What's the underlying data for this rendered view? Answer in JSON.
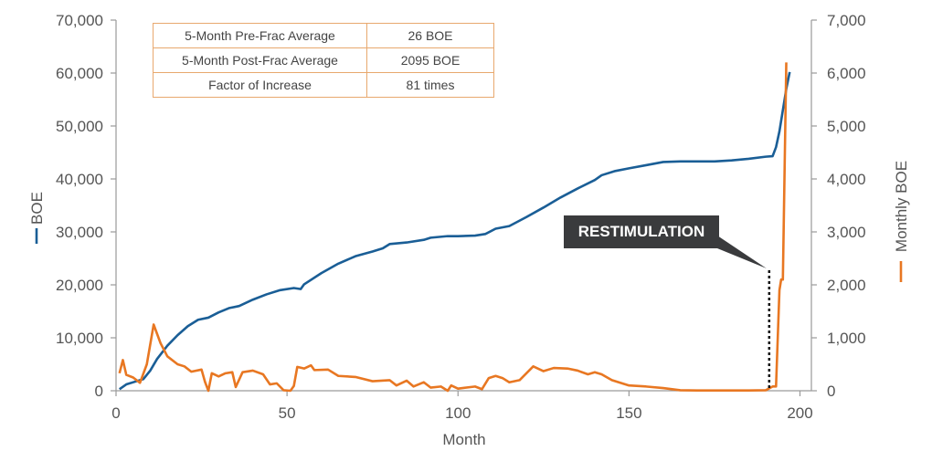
{
  "chart_data": {
    "type": "line",
    "xlabel": "Month",
    "x_ticks": [
      "0",
      "50",
      "100",
      "150",
      "200"
    ],
    "xlim": [
      0,
      200
    ],
    "ylabel_left": "BOE",
    "ylabel_right": "Monthly BOE",
    "ylim_left": [
      0,
      70000
    ],
    "ylim_right": [
      0,
      7000
    ],
    "y_ticks_left": [
      "0",
      "10,000",
      "20,000",
      "30,000",
      "40,000",
      "50,000",
      "60,000",
      "70,000"
    ],
    "y_ticks_right": [
      "0",
      "1,000",
      "2,000",
      "3,000",
      "4,000",
      "5,000",
      "6,000",
      "7,000"
    ],
    "grid": false,
    "legend": "axis-labels",
    "series": [
      {
        "name": "BOE",
        "axis": "left",
        "color": "#1a5e96",
        "points": [
          [
            1,
            300
          ],
          [
            3,
            1200
          ],
          [
            6,
            1800
          ],
          [
            8,
            2200
          ],
          [
            10,
            3800
          ],
          [
            12,
            6000
          ],
          [
            15,
            8500
          ],
          [
            18,
            10500
          ],
          [
            21,
            12200
          ],
          [
            24,
            13400
          ],
          [
            27,
            13800
          ],
          [
            30,
            14800
          ],
          [
            33,
            15600
          ],
          [
            36,
            16000
          ],
          [
            40,
            17200
          ],
          [
            44,
            18200
          ],
          [
            48,
            19000
          ],
          [
            52,
            19400
          ],
          [
            54,
            19200
          ],
          [
            55,
            20100
          ],
          [
            60,
            22200
          ],
          [
            65,
            24000
          ],
          [
            70,
            25400
          ],
          [
            75,
            26300
          ],
          [
            78,
            26900
          ],
          [
            80,
            27700
          ],
          [
            85,
            28000
          ],
          [
            90,
            28500
          ],
          [
            92,
            28900
          ],
          [
            97,
            29200
          ],
          [
            100,
            29200
          ],
          [
            105,
            29300
          ],
          [
            108,
            29600
          ],
          [
            111,
            30600
          ],
          [
            115,
            31100
          ],
          [
            120,
            32800
          ],
          [
            125,
            34600
          ],
          [
            130,
            36500
          ],
          [
            135,
            38200
          ],
          [
            140,
            39800
          ],
          [
            142,
            40700
          ],
          [
            146,
            41500
          ],
          [
            150,
            42000
          ],
          [
            155,
            42600
          ],
          [
            160,
            43200
          ],
          [
            165,
            43300
          ],
          [
            170,
            43300
          ],
          [
            175,
            43300
          ],
          [
            180,
            43500
          ],
          [
            185,
            43800
          ],
          [
            190,
            44200
          ],
          [
            192,
            44300
          ],
          [
            193,
            46000
          ],
          [
            194,
            49000
          ],
          [
            195,
            53000
          ],
          [
            196,
            57000
          ],
          [
            197,
            60200
          ]
        ]
      },
      {
        "name": "Monthly BOE",
        "axis": "right",
        "color": "#e87722",
        "points": [
          [
            1,
            330
          ],
          [
            2,
            580
          ],
          [
            3,
            300
          ],
          [
            5,
            250
          ],
          [
            7,
            150
          ],
          [
            9,
            500
          ],
          [
            11,
            1250
          ],
          [
            13,
            900
          ],
          [
            15,
            650
          ],
          [
            18,
            500
          ],
          [
            20,
            460
          ],
          [
            22,
            360
          ],
          [
            25,
            400
          ],
          [
            26,
            170
          ],
          [
            27,
            0
          ],
          [
            28,
            330
          ],
          [
            30,
            270
          ],
          [
            32,
            330
          ],
          [
            34,
            350
          ],
          [
            35,
            70
          ],
          [
            37,
            350
          ],
          [
            40,
            380
          ],
          [
            43,
            310
          ],
          [
            45,
            120
          ],
          [
            47,
            140
          ],
          [
            49,
            10
          ],
          [
            51,
            0
          ],
          [
            52,
            90
          ],
          [
            53,
            450
          ],
          [
            55,
            420
          ],
          [
            57,
            480
          ],
          [
            58,
            390
          ],
          [
            62,
            400
          ],
          [
            65,
            280
          ],
          [
            70,
            260
          ],
          [
            75,
            180
          ],
          [
            80,
            200
          ],
          [
            82,
            100
          ],
          [
            85,
            190
          ],
          [
            87,
            80
          ],
          [
            90,
            160
          ],
          [
            92,
            60
          ],
          [
            95,
            80
          ],
          [
            97,
            0
          ],
          [
            98,
            100
          ],
          [
            100,
            40
          ],
          [
            105,
            80
          ],
          [
            107,
            30
          ],
          [
            109,
            240
          ],
          [
            111,
            280
          ],
          [
            113,
            240
          ],
          [
            115,
            160
          ],
          [
            118,
            200
          ],
          [
            122,
            460
          ],
          [
            125,
            370
          ],
          [
            128,
            430
          ],
          [
            132,
            420
          ],
          [
            135,
            380
          ],
          [
            138,
            310
          ],
          [
            140,
            350
          ],
          [
            142,
            310
          ],
          [
            145,
            200
          ],
          [
            150,
            100
          ],
          [
            155,
            80
          ],
          [
            160,
            50
          ],
          [
            165,
            10
          ],
          [
            170,
            5
          ],
          [
            175,
            5
          ],
          [
            180,
            5
          ],
          [
            185,
            5
          ],
          [
            190,
            10
          ],
          [
            192,
            80
          ],
          [
            193,
            80
          ],
          [
            194,
            1900
          ],
          [
            194.5,
            2100
          ],
          [
            195,
            2100
          ],
          [
            196,
            6200
          ]
        ]
      }
    ],
    "annotation": {
      "label": "RESTIMULATION",
      "month": 191
    },
    "table": {
      "rows": [
        [
          "5-Month Pre-Frac Average",
          "26 BOE"
        ],
        [
          "5-Month Post-Frac Average",
          "2095 BOE"
        ],
        [
          "Factor of Increase",
          "81 times"
        ]
      ]
    }
  }
}
